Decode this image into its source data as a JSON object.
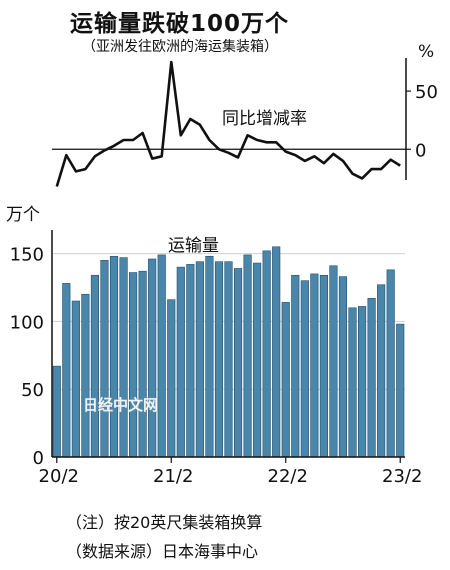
{
  "title": "运输量跌破100万个",
  "subtitle": "（亚洲发往欧洲的海运集装箱）",
  "watermark": "日经中文网",
  "note": "（注）按20英尺集装箱换算",
  "source": "（数据来源）日本海事中心",
  "colors": {
    "bar": "#4a86aa",
    "bar_edge": "#1f4f6e",
    "line": "#111111",
    "axis": "#111111"
  },
  "chart_data": [
    {
      "type": "line",
      "label": "同比增减率",
      "yunit": "%",
      "yticks": [
        0,
        50
      ],
      "ylim": [
        -35,
        75
      ],
      "x": [
        "2020-02",
        "2020-03",
        "2020-04",
        "2020-05",
        "2020-06",
        "2020-07",
        "2020-08",
        "2020-09",
        "2020-10",
        "2020-11",
        "2020-12",
        "2021-01",
        "2021-02",
        "2021-03",
        "2021-04",
        "2021-05",
        "2021-06",
        "2021-07",
        "2021-08",
        "2021-09",
        "2021-10",
        "2021-11",
        "2021-12",
        "2022-01",
        "2022-02",
        "2022-03",
        "2022-04",
        "2022-05",
        "2022-06",
        "2022-07",
        "2022-08",
        "2022-09",
        "2022-10",
        "2022-11",
        "2022-12",
        "2023-01",
        "2023-02"
      ],
      "values": [
        -32,
        -5,
        -19,
        -17,
        -6,
        -1,
        3,
        8,
        8,
        14,
        -8,
        -6,
        75,
        12,
        26,
        21,
        8,
        0,
        -3,
        -7,
        12,
        8,
        6,
        6,
        -2,
        -5,
        -10,
        -6,
        -12,
        -4,
        -10,
        -21,
        -25,
        -17,
        -17,
        -9,
        -14
      ]
    },
    {
      "type": "bar",
      "label": "运输量",
      "yunit": "万个",
      "yticks": [
        0,
        50,
        100,
        150
      ],
      "ylim": [
        0,
        160
      ],
      "x_tick_labels": [
        "20/2",
        "21/2",
        "22/2",
        "23/2"
      ],
      "x": [
        "2020-02",
        "2020-03",
        "2020-04",
        "2020-05",
        "2020-06",
        "2020-07",
        "2020-08",
        "2020-09",
        "2020-10",
        "2020-11",
        "2020-12",
        "2021-01",
        "2021-02",
        "2021-03",
        "2021-04",
        "2021-05",
        "2021-06",
        "2021-07",
        "2021-08",
        "2021-09",
        "2021-10",
        "2021-11",
        "2021-12",
        "2022-01",
        "2022-02",
        "2022-03",
        "2022-04",
        "2022-05",
        "2022-06",
        "2022-07",
        "2022-08",
        "2022-09",
        "2022-10",
        "2022-11",
        "2022-12",
        "2023-01",
        "2023-02"
      ],
      "values": [
        67,
        128,
        115,
        120,
        134,
        145,
        148,
        147,
        136,
        137,
        146,
        149,
        116,
        140,
        142,
        144,
        148,
        144,
        144,
        139,
        149,
        143,
        152,
        155,
        114,
        134,
        130,
        135,
        134,
        141,
        133,
        110,
        111,
        117,
        127,
        138,
        98
      ]
    }
  ]
}
